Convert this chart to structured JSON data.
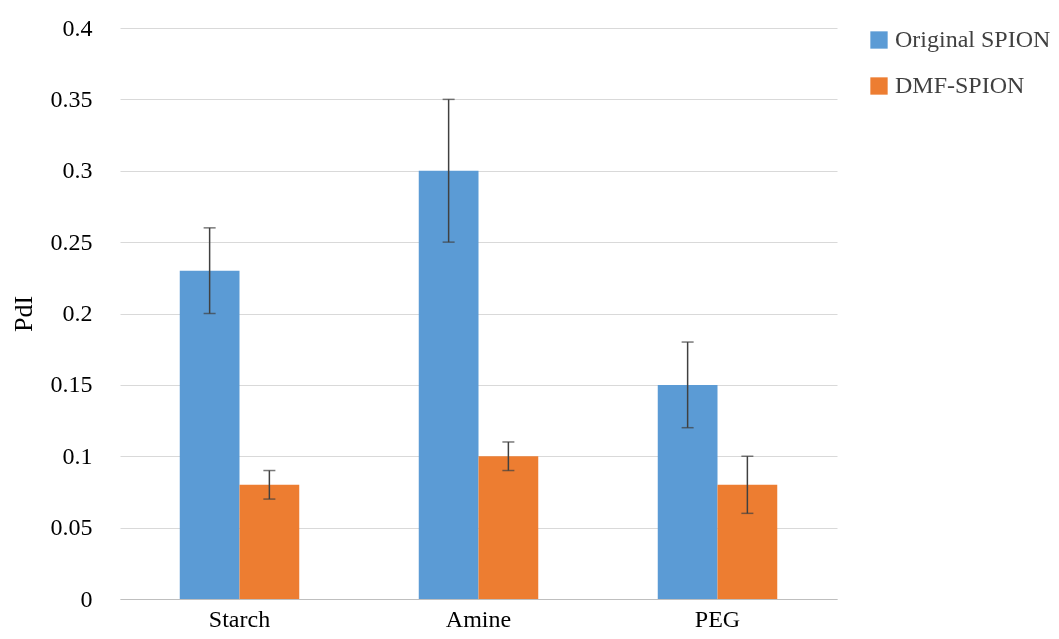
{
  "chart_data": {
    "type": "bar",
    "ylabel": "PdI",
    "categories": [
      "Starch",
      "Amine",
      "PEG"
    ],
    "series": [
      {
        "name": "Original SPION",
        "color": "#5b9bd5",
        "values": [
          0.23,
          0.3,
          0.15
        ],
        "errors": [
          0.03,
          0.05,
          0.03
        ]
      },
      {
        "name": "DMF-SPION",
        "color": "#ed7d31",
        "values": [
          0.08,
          0.1,
          0.08
        ],
        "errors": [
          0.01,
          0.01,
          0.02
        ]
      }
    ],
    "ylim": [
      0,
      0.4
    ],
    "yticks": [
      0,
      0.05,
      0.1,
      0.15,
      0.2,
      0.25,
      0.3,
      0.35,
      0.4
    ],
    "grid": "y",
    "legend": "right"
  }
}
